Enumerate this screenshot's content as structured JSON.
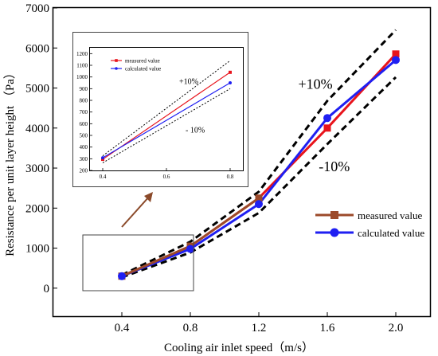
{
  "chart_data": [
    {
      "type": "line",
      "xlabel": "Cooling air inlet speed（m/s）",
      "ylabel": "Resistance per unit layer height （Pa）",
      "x": [
        0.4,
        0.8,
        1.2,
        1.6,
        2.0
      ],
      "x_tick_labels": [
        "0.4",
        "0.8",
        "1.2",
        "1.6",
        "2.0"
      ],
      "xlim": [
        0.0,
        2.2
      ],
      "ylim": [
        -700,
        7000
      ],
      "y_ticks": [
        0,
        1000,
        2000,
        3000,
        4000,
        5000,
        6000,
        7000
      ],
      "grid": false,
      "legend_position": "right",
      "series": [
        {
          "name": "measured value",
          "values": [
            300,
            1050,
            2250,
            4000,
            5850
          ],
          "color": "#e8141c",
          "marker": "square"
        },
        {
          "name": "calculated value",
          "values": [
            300,
            980,
            2100,
            4250,
            5700
          ],
          "color": "#1f1ff2",
          "marker": "circle"
        }
      ],
      "bounds": [
        {
          "label": "+10%",
          "values": [
            330,
            1160,
            2410,
            4680,
            6450
          ]
        },
        {
          "label": "-10%",
          "values": [
            270,
            890,
            1880,
            3600,
            5270
          ]
        }
      ],
      "overlay_color": "#9c4a2a"
    },
    {
      "type": "line",
      "position": "inset",
      "x": [
        0.4,
        0.8
      ],
      "x_tick_labels": [
        "0.4",
        "0.6",
        "0.8"
      ],
      "xlim": [
        0.36,
        0.84
      ],
      "ylim": [
        200,
        1250
      ],
      "y_ticks": [
        200,
        300,
        400,
        500,
        600,
        700,
        800,
        900,
        1000,
        1100,
        1200
      ],
      "series": [
        {
          "name": "measured value",
          "values": [
            295,
            1040
          ],
          "color": "#e8141c",
          "marker": "square"
        },
        {
          "name": "calculated value",
          "values": [
            308,
            950
          ],
          "color": "#1f1ff2",
          "marker": "circle"
        }
      ],
      "bounds": [
        {
          "label": "+10%",
          "values": [
            325,
            1140
          ]
        },
        {
          "label": "- 10%",
          "values": [
            265,
            900
          ]
        }
      ]
    }
  ]
}
